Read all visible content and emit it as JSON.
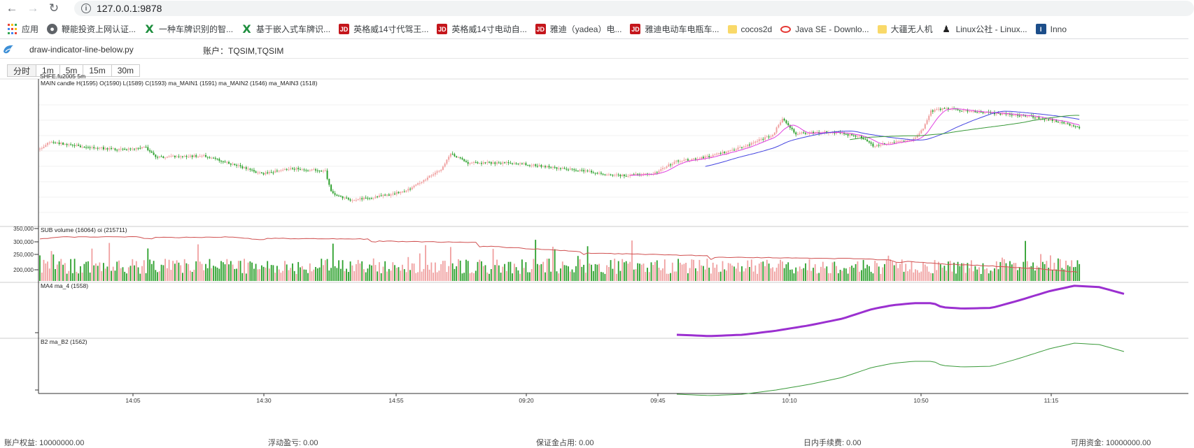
{
  "browser": {
    "url": "127.0.0.1:9878",
    "bookmarks": [
      {
        "label": "应用",
        "icon": "apps-icon"
      },
      {
        "label": "鞭能投资上网认证...",
        "icon": "globe-icon"
      },
      {
        "label": "一种车牌识别的智...",
        "icon": "excel-icon"
      },
      {
        "label": "基于嵌入式车牌识...",
        "icon": "excel-icon"
      },
      {
        "label": "英格威14寸代驾王...",
        "icon": "jd-icon"
      },
      {
        "label": "英格威14寸电动自...",
        "icon": "jd-icon"
      },
      {
        "label": "雅迪（yadea）电...",
        "icon": "jd-icon"
      },
      {
        "label": "雅迪电动车电瓶车...",
        "icon": "jd-icon"
      },
      {
        "label": "cocos2d",
        "icon": "folder-icon"
      },
      {
        "label": "Java SE - Downlo...",
        "icon": "java-icon"
      },
      {
        "label": "大疆无人机",
        "icon": "folder-icon"
      },
      {
        "label": "Linux公社 - Linux...",
        "icon": "tux-icon"
      },
      {
        "label": "Inno",
        "icon": "inno-icon"
      }
    ]
  },
  "app": {
    "title": "draw-indicator-line-below.py",
    "account": "账户：TQSIM,TQSIM",
    "periods": [
      "分时",
      "1m",
      "5m",
      "15m",
      "30m"
    ],
    "instrument": "SHFE.fu2005 5m"
  },
  "chart_data": {
    "type": "candlestick",
    "panels": [
      {
        "id": "main",
        "legend": "MAIN candle H(1595) O(1590) L(1589) C(1593) ma_MAIN1 (1591) ma_MAIN2 (1546) ma_MAIN3 (1518)"
      },
      {
        "id": "sub",
        "legend": "SUB volume (16064) oi (215711)",
        "y_ticks": [
          "350,000",
          "300,000",
          "250,000",
          "200,000"
        ]
      },
      {
        "id": "ma4",
        "legend": "MA4 ma_4 (1558)"
      },
      {
        "id": "b2",
        "legend": "B2 ma_B2 (1562)"
      }
    ],
    "x_ticks": [
      "14:05",
      "14:30",
      "14:55",
      "09:20",
      "09:45",
      "10:10",
      "10:50",
      "11:15"
    ],
    "colors": {
      "up": "#f0a0a0",
      "down": "#2ca02c",
      "ma1": "#e040e0",
      "ma2": "#4444e0",
      "ma3": "#3a9a3a",
      "oi": "#d05050",
      "ma4": "#9b30d0",
      "b2": "#3a9a3a"
    }
  },
  "status_bar": [
    {
      "label": "账户权益: 10000000.00"
    },
    {
      "label": "浮动盈亏: 0.00"
    },
    {
      "label": "保证金占用: 0.00"
    },
    {
      "label": "日内手续费: 0.00"
    },
    {
      "label": "可用资金: 10000000.00"
    }
  ]
}
